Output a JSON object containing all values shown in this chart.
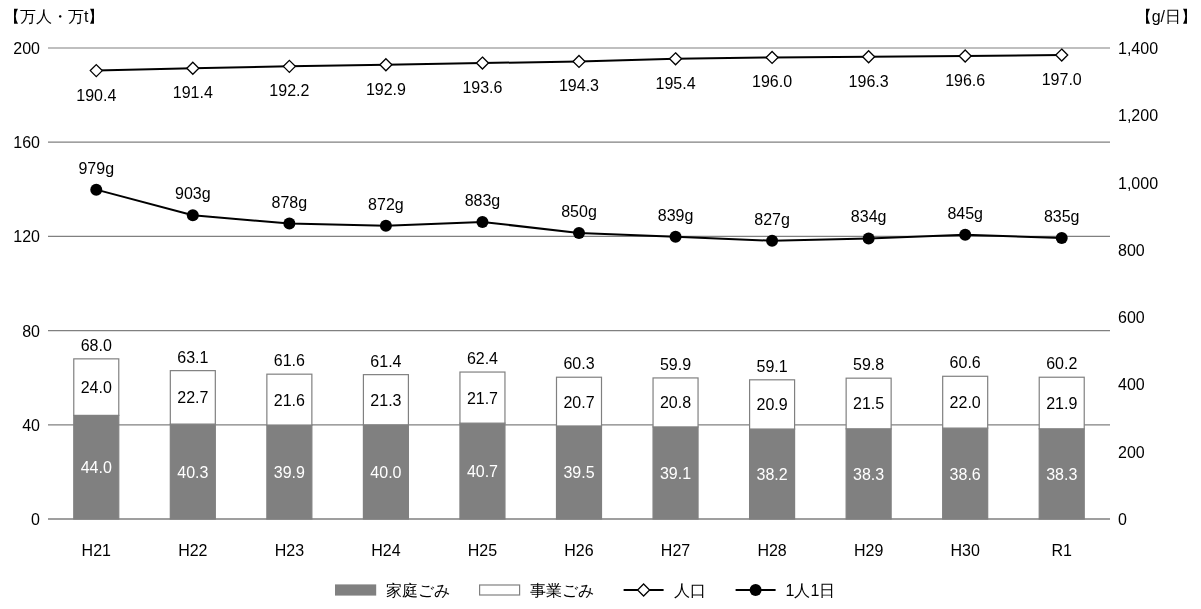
{
  "chart_data": {
    "type": "bar",
    "stacked": true,
    "ylabel": "【万人・万t】",
    "y2label": "【g/日】",
    "categories": [
      "H21",
      "H22",
      "H23",
      "H24",
      "H25",
      "H26",
      "H27",
      "H28",
      "H29",
      "H30",
      "R1"
    ],
    "ylim": [
      0,
      200
    ],
    "yticks": [
      0,
      40,
      80,
      120,
      160,
      200
    ],
    "y2lim": [
      0,
      1400
    ],
    "y2ticks": [
      0,
      200,
      400,
      600,
      800,
      {
        "value": 1000,
        "label": "1,000"
      },
      {
        "value": 1200,
        "label": "1,200"
      },
      {
        "value": 1400,
        "label": "1,400"
      }
    ],
    "grid": "y",
    "legend": "bottom",
    "series": [
      {
        "name": "家庭ごみ",
        "color": "#808080",
        "values": [
          44.0,
          40.3,
          39.9,
          40.0,
          40.7,
          39.5,
          39.1,
          38.2,
          38.3,
          38.6,
          38.3
        ],
        "value_labels": [
          "44.0",
          "40.3",
          "39.9",
          "40.0",
          "40.7",
          "39.5",
          "39.1",
          "38.2",
          "38.3",
          "38.6",
          "38.3"
        ]
      },
      {
        "name": "事業ごみ",
        "color": "#ffffff",
        "values": [
          24.0,
          22.7,
          21.6,
          21.3,
          21.7,
          20.7,
          20.8,
          20.9,
          21.5,
          22.0,
          21.9
        ],
        "value_labels": [
          "24.0",
          "22.7",
          "21.6",
          "21.3",
          "21.7",
          "20.7",
          "20.8",
          "20.9",
          "21.5",
          "22.0",
          "21.9"
        ]
      },
      {
        "name": "人口",
        "type": "line",
        "color": "#000000",
        "marker": "diamond",
        "values": [
          190.4,
          191.4,
          192.2,
          192.9,
          193.6,
          194.3,
          195.4,
          196.0,
          196.3,
          196.6,
          197.0
        ],
        "value_labels": [
          "190.4",
          "191.4",
          "192.2",
          "192.9",
          "193.6",
          "194.3",
          "195.4",
          "196.0",
          "196.3",
          "196.6",
          "197.0"
        ]
      },
      {
        "name": "1人1日",
        "type": "line",
        "axis": "y2",
        "color": "#000000",
        "marker": "circle",
        "values": [
          979,
          903,
          878,
          872,
          883,
          850,
          839,
          827,
          834,
          845,
          835
        ],
        "value_labels": [
          "979g",
          "903g",
          "878g",
          "872g",
          "883g",
          "850g",
          "839g",
          "827g",
          "834g",
          "845g",
          "835g"
        ]
      }
    ],
    "totals": [
      "68.0",
      "63.1",
      "61.6",
      "61.4",
      "62.4",
      "60.3",
      "59.9",
      "59.1",
      "59.8",
      "60.6",
      "60.2"
    ]
  }
}
